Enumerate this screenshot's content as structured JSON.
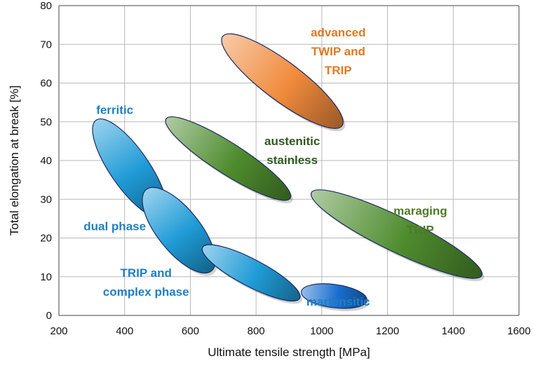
{
  "chart_data": {
    "type": "scatter",
    "title": "",
    "xlabel": "Ultimate tensile strength [MPa]",
    "ylabel": "Total elongation at break [%]",
    "xlim": [
      200,
      1600
    ],
    "ylim": [
      0,
      80
    ],
    "x_ticks": [
      "200",
      "400",
      "600",
      "800",
      "1000",
      "1200",
      "1400",
      "1600"
    ],
    "y_ticks": [
      "0",
      "10",
      "20",
      "30",
      "40",
      "50",
      "60",
      "70",
      "80"
    ],
    "grid": true,
    "legend": "none",
    "regions": [
      {
        "name": "ferritic",
        "label_lines": [
          "ferritic"
        ],
        "color": "#1f9bd6",
        "label_color": "#1f7fc4",
        "label_at": [
          370,
          52
        ],
        "from": [
          325,
          49
        ],
        "to": [
          505,
          27
        ],
        "width": 10
      },
      {
        "name": "dual phase",
        "label_lines": [
          "dual phase"
        ],
        "color": "#1f9bd6",
        "label_color": "#1f7fc4",
        "label_at": [
          370,
          22
        ],
        "from": [
          480,
          31
        ],
        "to": [
          650,
          13
        ],
        "width": 11
      },
      {
        "name": "TRIP and complex phase",
        "label_lines": [
          "TRIP and",
          "complex phase"
        ],
        "color": "#1f9bd6",
        "label_color": "#1f7fc4",
        "label_at": [
          465,
          10
        ],
        "from": [
          650,
          17
        ],
        "to": [
          920,
          5
        ],
        "width": 7
      },
      {
        "name": "martensitic",
        "label_lines": [
          "martensitic"
        ],
        "color": "#1a6fd0",
        "label_color": "#1f7fc4",
        "label_at": [
          1050,
          2.5
        ],
        "from": [
          950,
          6
        ],
        "to": [
          1125,
          4
        ],
        "width": 6
      },
      {
        "name": "austenitic stainless",
        "label_lines": [
          "austenitic",
          "stainless"
        ],
        "color": "#4e8c2e",
        "label_color": "#2f5a20",
        "label_at": [
          910,
          44
        ],
        "from": [
          540,
          50
        ],
        "to": [
          890,
          31
        ],
        "width": 8
      },
      {
        "name": "maraging TRIP",
        "label_lines": [
          "maraging",
          "TRIP"
        ],
        "color": "#4e8c2e",
        "label_color": "#4f7a26",
        "label_at": [
          1300,
          26
        ],
        "from": [
          985,
          31
        ],
        "to": [
          1470,
          11
        ],
        "width": 9
      },
      {
        "name": "advanced TWIP and TRIP",
        "label_lines": [
          "advanced",
          "TWIP and",
          "TRIP"
        ],
        "color": "#f08a3c",
        "label_color": "#e07a22",
        "label_at": [
          1050,
          72
        ],
        "from": [
          715,
          71
        ],
        "to": [
          1045,
          50
        ],
        "width": 10
      }
    ]
  }
}
